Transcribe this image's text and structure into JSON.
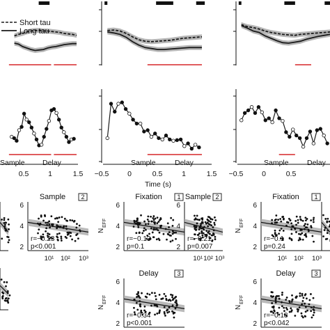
{
  "colors": {
    "line": "#1a1a1a",
    "band": "#a9a9a9",
    "redbar": "#d62728",
    "text": "#111111"
  },
  "legend": {
    "short": "Short tau",
    "long": "Long tau"
  },
  "row1_panels": [
    {
      "epochs": [
        [
          0.55,
          0.75
        ]
      ],
      "short": [
        0.45,
        0.42,
        0.4,
        0.37,
        0.35,
        0.34,
        0.34,
        0.35,
        0.35,
        0.36,
        0.37,
        0.38,
        0.4,
        0.41,
        0.42,
        0.44
      ],
      "long": [
        0.6,
        0.62,
        0.67,
        0.7,
        0.73,
        0.75,
        0.74,
        0.73,
        0.7,
        0.68,
        0.67,
        0.65,
        0.63,
        0.62,
        0.61,
        0.61
      ],
      "red": [
        [
          0.0,
          0.78
        ],
        [
          0.83,
          1.25
        ]
      ]
    },
    {
      "epochs": [
        [
          -0.45,
          -0.4
        ],
        [
          0.45,
          0.75
        ],
        [
          1.15,
          1.3
        ]
      ],
      "short": [
        0.34,
        0.33,
        0.35,
        0.4,
        0.47,
        0.53,
        0.56,
        0.57,
        0.56,
        0.55,
        0.54,
        0.52,
        0.5,
        0.49,
        0.48,
        0.47
      ],
      "long": [
        0.37,
        0.39,
        0.42,
        0.48,
        0.57,
        0.64,
        0.69,
        0.71,
        0.73,
        0.73,
        0.72,
        0.71,
        0.7,
        0.69,
        0.69,
        0.69
      ],
      "red": [
        [
          0.3,
          1.25
        ]
      ]
    },
    {
      "epochs": [
        [
          -0.45,
          -0.4
        ],
        [
          0.4,
          0.6
        ],
        [
          1.15,
          1.3
        ]
      ],
      "short": [
        0.22,
        0.26,
        0.28,
        0.31,
        0.35,
        0.38,
        0.4,
        0.42,
        0.43,
        0.44,
        0.42,
        0.41,
        0.4,
        0.39,
        0.38,
        0.37
      ],
      "long": [
        0.24,
        0.29,
        0.35,
        0.38,
        0.45,
        0.5,
        0.55,
        0.59,
        0.6,
        0.58,
        0.56,
        0.52,
        0.49,
        0.46,
        0.44,
        0.42
      ],
      "red": [
        [
          0.6,
          0.9
        ]
      ]
    }
  ],
  "row2_panels": [
    {
      "y": [
        0.7,
        0.72,
        0.76,
        0.6,
        0.55,
        0.35,
        0.44,
        0.48,
        0.56,
        0.65,
        0.74,
        0.83,
        0.82,
        0.7,
        0.58,
        0.46,
        0.3,
        0.28,
        0.34,
        0.44,
        0.56,
        0.63,
        0.7,
        0.78,
        0.74,
        0.73
      ],
      "red": [
        [
          0.0,
          0.78
        ],
        [
          0.83,
          1.25
        ]
      ]
    },
    {
      "y": [
        0.72,
        0.2,
        0.32,
        0.2,
        0.18,
        0.28,
        0.35,
        0.44,
        0.5,
        0.5,
        0.62,
        0.6,
        0.7,
        0.65,
        0.72,
        0.74,
        0.68,
        0.74,
        0.76,
        0.75,
        0.74,
        0.84,
        0.8,
        0.88,
        0.82,
        0.86
      ],
      "red": [
        [
          0.3,
          1.25
        ]
      ]
    },
    {
      "y": [
        0.45,
        0.34,
        0.3,
        0.25,
        0.34,
        0.25,
        0.33,
        0.45,
        0.42,
        0.48,
        0.3,
        0.42,
        0.46,
        0.63,
        0.7,
        0.59,
        0.68,
        0.72,
        0.85,
        0.72,
        0.62,
        0.8,
        0.6,
        0.58,
        0.68,
        0.8
      ],
      "red": [
        [
          0.3,
          0.6
        ]
      ]
    }
  ],
  "time_axis": {
    "label": "Time (s)",
    "ticks_left": [
      "0.5",
      "1",
      "1.5"
    ],
    "ticks_mid": [
      "−0.5",
      "0",
      "0.5",
      "1",
      "1.5"
    ],
    "ticks_right": [
      "−0.5",
      "0",
      "0.5"
    ]
  },
  "epoch_labels": {
    "left": [
      "Sample",
      "Delay"
    ],
    "mid": [
      "Sample",
      "Delay"
    ],
    "right": [
      "Sample",
      "Delay"
    ]
  },
  "scatter_panels": [
    {
      "title": "Sample",
      "box": "2",
      "ylabel": "6 4 2",
      "r": "r=−0.23",
      "p": "p<0.001"
    },
    {
      "title": "Fixation",
      "box": "1",
      "ylabel": "N_EFF",
      "r": "r=−0.13",
      "p": "p=0.1"
    },
    {
      "title": "Sample",
      "box": "2",
      "r": "r=−0.21",
      "p": "p=0.007"
    },
    {
      "title": "Fixation",
      "box": "1",
      "r": "r=−0.1",
      "p": "p=0.24"
    },
    {
      "title": "Delay",
      "box": "3",
      "r": "r=−0.34",
      "p": "p<0.001"
    },
    {
      "title": "Delay",
      "box": "3",
      "r": "r=−0.18",
      "p": "p<0.042"
    }
  ],
  "scatter_ticks": {
    "y": [
      "6",
      "4",
      "2"
    ],
    "x": [
      "10¹",
      "10²",
      "10³"
    ],
    "n_eff": "N",
    "n_eff_sub": "EFF"
  },
  "chart_data": [
    {
      "type": "line",
      "series": [
        {
          "name": "Short tau"
        },
        {
          "name": "Long tau"
        }
      ],
      "xlabel": "Time (s)"
    },
    {
      "type": "scatter",
      "titles": [
        "Fixation",
        "Sample",
        "Delay"
      ],
      "stats": [
        {
          "r": -0.23,
          "p": "<0.001"
        },
        {
          "r": -0.13,
          "p": "0.1"
        },
        {
          "r": -0.21,
          "p": "0.007"
        },
        {
          "r": -0.1,
          "p": "0.24"
        },
        {
          "r": -0.34,
          "p": "<0.001"
        },
        {
          "r": -0.18,
          "p": "<0.042"
        }
      ]
    }
  ]
}
